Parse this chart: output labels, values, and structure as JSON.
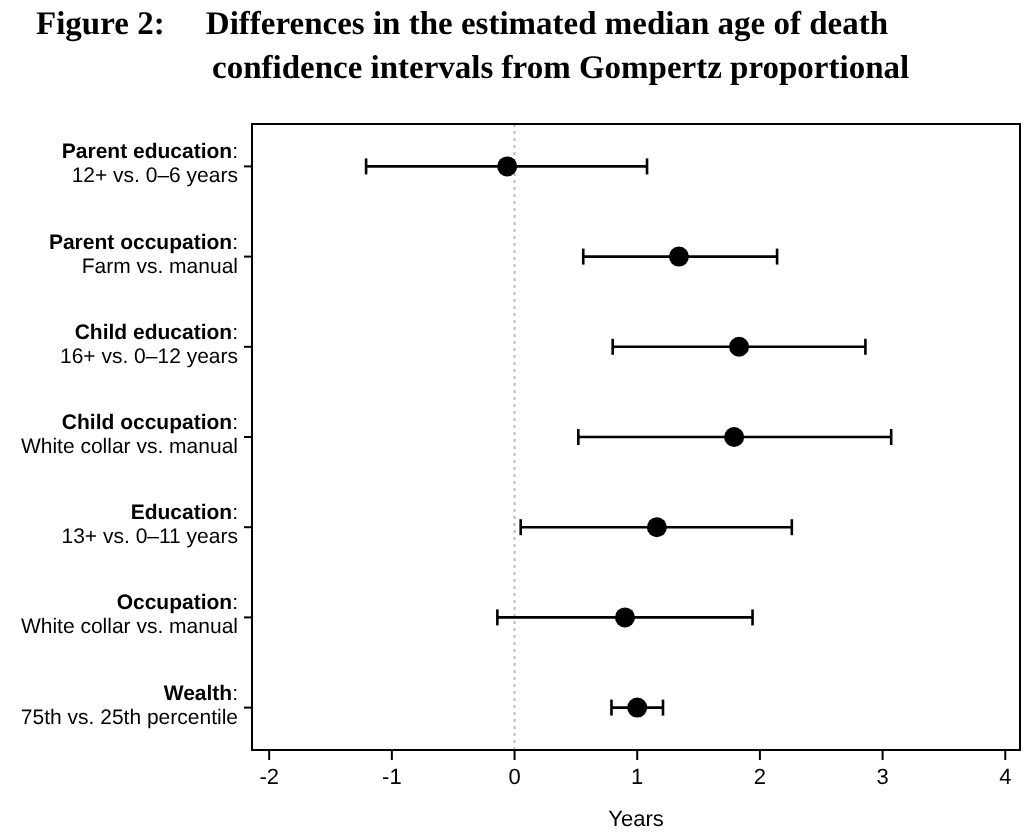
{
  "chart_data": {
    "type": "scatter",
    "orientation": "horizontal",
    "title": "Figure 2:     Differences in the estimated median age of death",
    "subtitle": "confidence intervals from Gompertz proportional",
    "xlabel": "Years",
    "categories": [
      "Parent education:\n12+ vs. 0–6 years",
      "Parent occupation:\nFarm vs. manual",
      "Child education:\n16+  vs. 0–12 years",
      "Child occupation:\nWhite collar vs. manual",
      "Education:\n13+  vs. 0–11 years",
      "Occupation:\nWhite collar vs. manual",
      "Wealth:\n75th vs. 25th percentile"
    ],
    "values": [
      -0.06,
      1.34,
      1.83,
      1.79,
      1.16,
      0.9,
      1.0
    ],
    "errors": [
      [
        -1.21,
        1.08
      ],
      [
        0.56,
        2.14
      ],
      [
        0.8,
        2.86
      ],
      [
        0.52,
        3.07
      ],
      [
        0.05,
        2.26
      ],
      [
        -0.14,
        1.94
      ],
      [
        0.79,
        1.21
      ]
    ],
    "color": "#000000",
    "marker": "circle",
    "xlim": [
      -2.14,
      4.12
    ],
    "xticks": [
      -2,
      -1,
      0,
      1,
      2,
      3,
      4
    ],
    "ref_lines": [
      {
        "axis": "x",
        "value": 0,
        "color": "#bbbbbb",
        "line_style": "dotted"
      }
    ],
    "grid": false
  }
}
